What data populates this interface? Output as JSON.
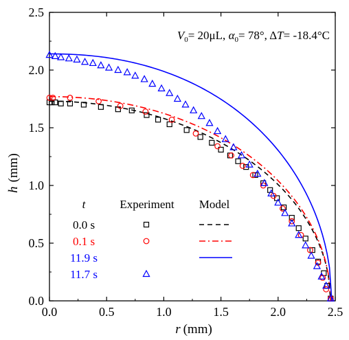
{
  "chart_data": {
    "type": "scatter",
    "xlabel": {
      "symbol": "r",
      "unit": "(mm)"
    },
    "ylabel": {
      "symbol": "h",
      "unit": "(mm)"
    },
    "xlim": [
      0.0,
      2.5
    ],
    "ylim": [
      0.0,
      2.5
    ],
    "xticks": [
      "0.0",
      "0.5",
      "1.0",
      "1.5",
      "2.0",
      "2.5"
    ],
    "yticks": [
      "0.0",
      "0.5",
      "1.0",
      "1.5",
      "2.0",
      "2.5"
    ],
    "grid": false,
    "annotation": {
      "v_sym": "V",
      "v_sub": "0",
      "v_val": "= 20μL, ",
      "a_sym": "α",
      "a_sub": "0",
      "a_val": "= 78°, Δ",
      "t_sym": "T",
      "t_val": "= -18.4°C"
    },
    "legend": {
      "header_t": "t",
      "header_experiment": "Experiment",
      "header_model": "Model",
      "rows": [
        {
          "label": "0.0 s",
          "color": "#000000",
          "marker": "square",
          "line": "dashed"
        },
        {
          "label": "0.1 s",
          "color": "#ff0000",
          "marker": "circle",
          "line": "dashdot"
        },
        {
          "label": "11.9 s",
          "color": "#0000ff",
          "marker": "none",
          "line": "solid"
        },
        {
          "label": "11.7 s",
          "color": "#0000ff",
          "marker": "triangle",
          "line": "none"
        }
      ]
    },
    "series": [
      {
        "color": "#000000",
        "marker": "square",
        "x": [
          0.0,
          0.02,
          0.05,
          0.1,
          0.18,
          0.3,
          0.45,
          0.6,
          0.72,
          0.85,
          0.95,
          1.05,
          1.2,
          1.32,
          1.42,
          1.5,
          1.58,
          1.65,
          1.72,
          1.8,
          1.87,
          1.93,
          1.99,
          2.05,
          2.12,
          2.18,
          2.24,
          2.3,
          2.35,
          2.4,
          2.43,
          2.46
        ],
        "y": [
          1.72,
          1.72,
          1.72,
          1.71,
          1.71,
          1.7,
          1.68,
          1.66,
          1.65,
          1.61,
          1.57,
          1.53,
          1.48,
          1.42,
          1.37,
          1.31,
          1.26,
          1.21,
          1.16,
          1.09,
          1.02,
          0.96,
          0.89,
          0.81,
          0.72,
          0.63,
          0.54,
          0.44,
          0.34,
          0.24,
          0.13,
          0.02
        ]
      },
      {
        "color": "#ff0000",
        "marker": "circle",
        "x": [
          0.0,
          0.03,
          0.18,
          0.43,
          0.62,
          0.84,
          1.07,
          1.28,
          1.47,
          1.59,
          1.69,
          1.78,
          1.87,
          1.96,
          2.04,
          2.12,
          2.2,
          2.28,
          2.35,
          2.39,
          2.42,
          2.46
        ],
        "y": [
          1.76,
          1.76,
          1.76,
          1.73,
          1.69,
          1.64,
          1.57,
          1.45,
          1.34,
          1.26,
          1.17,
          1.09,
          1.0,
          0.91,
          0.8,
          0.69,
          0.57,
          0.44,
          0.33,
          0.2,
          0.1,
          0.02
        ]
      },
      {
        "color": "#0000ff",
        "marker": "triangle",
        "x": [
          0.0,
          0.05,
          0.1,
          0.17,
          0.24,
          0.31,
          0.38,
          0.45,
          0.52,
          0.6,
          0.68,
          0.75,
          0.83,
          0.9,
          0.98,
          1.05,
          1.12,
          1.19,
          1.26,
          1.33,
          1.4,
          1.47,
          1.54,
          1.61,
          1.68,
          1.75,
          1.82,
          1.88,
          1.94,
          2.0,
          2.06,
          2.12,
          2.18,
          2.24,
          2.29,
          2.34,
          2.38,
          2.42,
          2.46
        ],
        "y": [
          2.13,
          2.12,
          2.11,
          2.1,
          2.09,
          2.07,
          2.06,
          2.04,
          2.02,
          2.0,
          1.98,
          1.95,
          1.92,
          1.88,
          1.84,
          1.8,
          1.75,
          1.7,
          1.65,
          1.6,
          1.54,
          1.47,
          1.4,
          1.33,
          1.26,
          1.18,
          1.1,
          1.02,
          0.93,
          0.85,
          0.76,
          0.67,
          0.57,
          0.48,
          0.39,
          0.3,
          0.21,
          0.13,
          0.02
        ]
      }
    ],
    "models": [
      {
        "color": "#000000",
        "dash": "dashed",
        "h0": 1.73,
        "r0": 2.46,
        "n": 2.0
      },
      {
        "color": "#ff0000",
        "dash": "dashdot",
        "h0": 1.77,
        "r0": 2.46,
        "n": 2.05
      },
      {
        "color": "#0000ff",
        "dash": "solid",
        "h0": 2.14,
        "r0": 2.47,
        "n": 2.2
      }
    ]
  }
}
